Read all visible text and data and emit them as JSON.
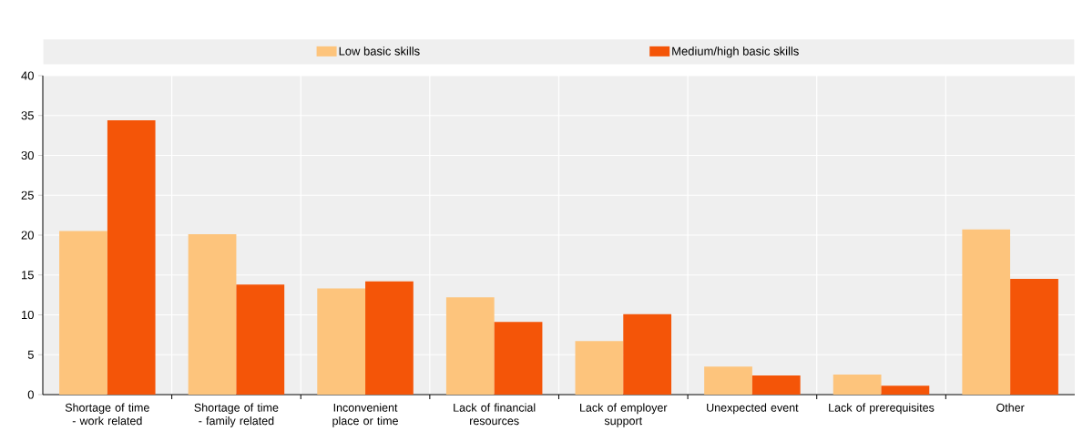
{
  "chart_data": {
    "type": "bar",
    "categories": [
      "Shortage of time - work related",
      "Shortage of time - family related",
      "Inconvenient place or time",
      "Lack of financial resources",
      "Lack of employer support",
      "Unexpected event",
      "Lack of prerequisites",
      "Other"
    ],
    "series": [
      {
        "name": "Low basic skills",
        "color": "#fdc47c",
        "values": [
          20.5,
          20.1,
          13.3,
          12.2,
          6.7,
          3.5,
          2.5,
          20.7
        ]
      },
      {
        "name": "Medium/high basic skills",
        "color": "#f45508",
        "values": [
          34.4,
          13.8,
          14.2,
          9.1,
          10.1,
          2.4,
          1.1,
          14.5
        ]
      }
    ],
    "ylim": [
      0,
      40
    ],
    "yticks": [
      0,
      5,
      10,
      15,
      20,
      25,
      30,
      35,
      40
    ],
    "grid": true,
    "legend": "top"
  }
}
